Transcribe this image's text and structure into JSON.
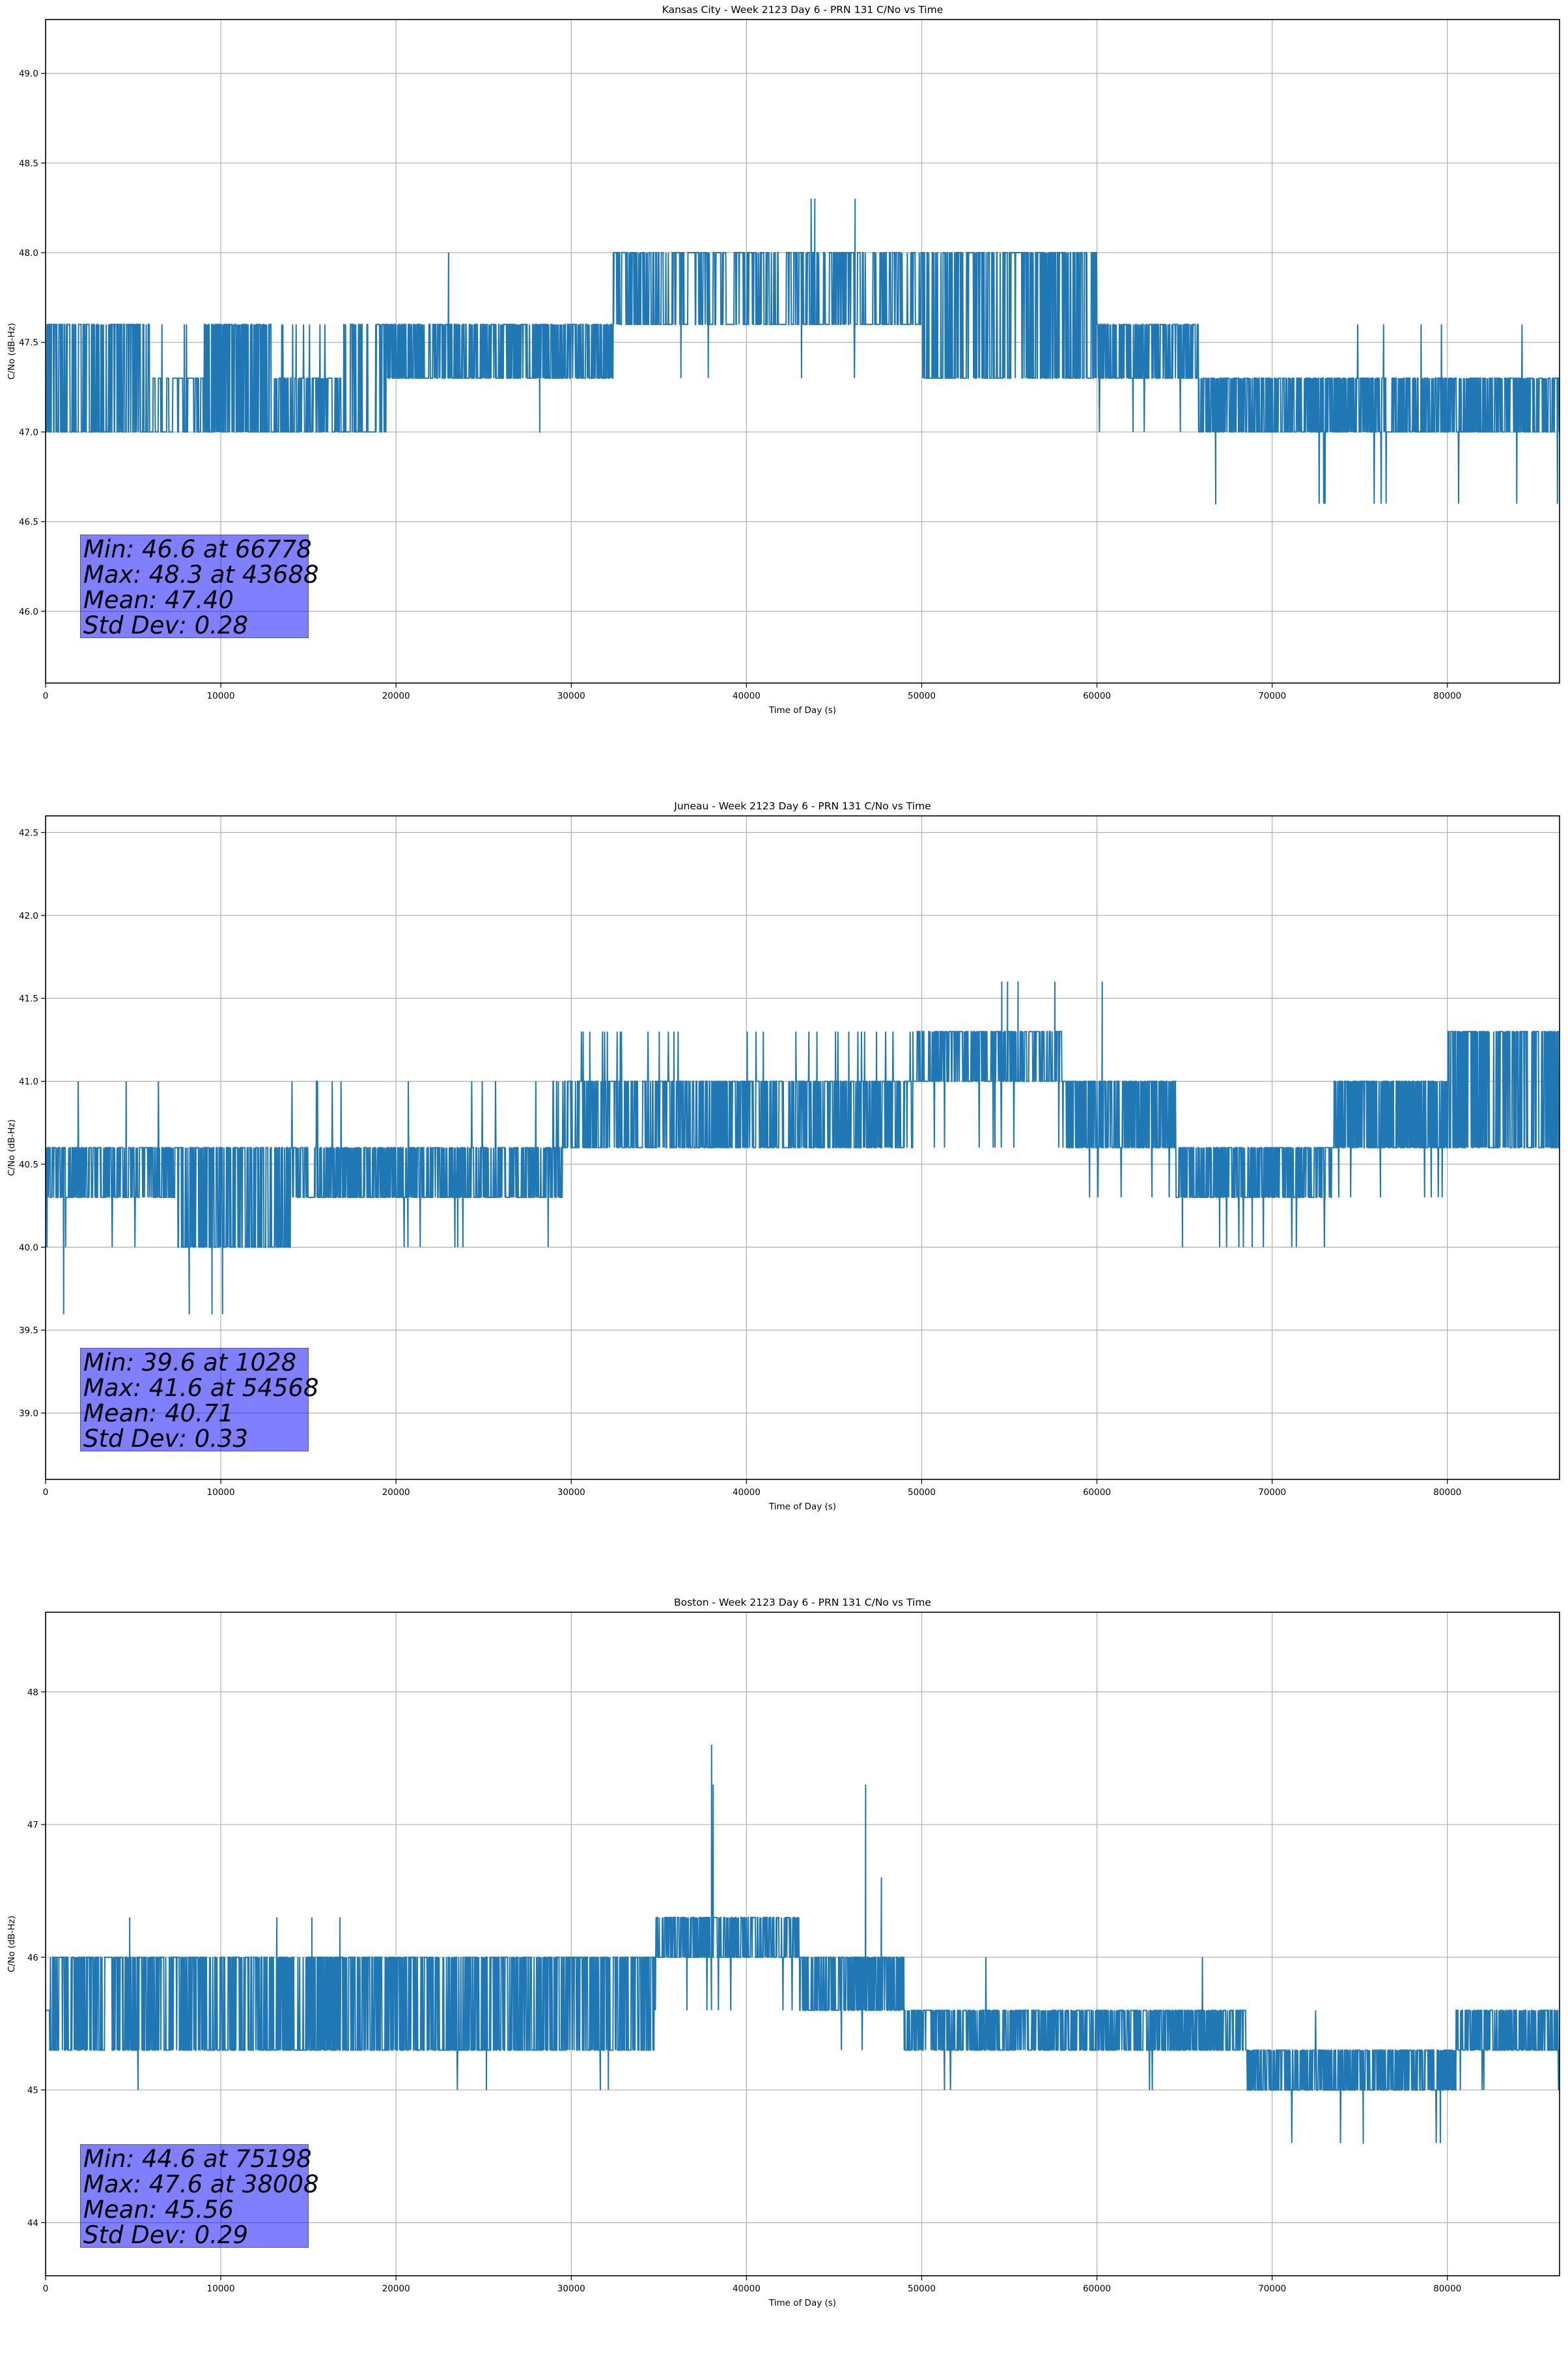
{
  "figure": {
    "colors": {
      "line": "#1f77b4",
      "grid": "#b0b0b0",
      "stats_box": "#0000ff"
    }
  },
  "chart_data": [
    {
      "type": "line",
      "title": "Kansas City - Week 2123 Day 6 - PRN 131 C/No vs Time",
      "xlabel": "Time of Day (s)",
      "ylabel": "C/No (dB-Hz)",
      "xlim": [
        0,
        86400
      ],
      "ylim": [
        45.6,
        49.3
      ],
      "xticks": [
        0,
        10000,
        20000,
        30000,
        40000,
        50000,
        60000,
        70000,
        80000
      ],
      "xtick_labels": [
        "0",
        "10000",
        "20000",
        "30000",
        "40000",
        "50000",
        "60000",
        "70000",
        "80000"
      ],
      "yticks": [
        46.0,
        46.5,
        47.0,
        47.5,
        48.0,
        48.5,
        49.0
      ],
      "ytick_labels": [
        "46.0",
        "46.5",
        "47.0",
        "47.5",
        "48.0",
        "48.5",
        "49.0"
      ],
      "grid": true,
      "series": [
        {
          "name": "PRN 131 C/No",
          "quantized_levels": [
            46.6,
            47.0,
            47.3,
            47.6,
            48.0,
            48.3
          ],
          "segments": [
            {
              "t": [
                0,
                6000
              ],
              "lo": 47.0,
              "hi": 47.6,
              "main": 47.3,
              "switch": 0.35
            },
            {
              "t": [
                6000,
                9000
              ],
              "lo": 47.0,
              "hi": 47.3,
              "main": 47.3,
              "switch": 0.1,
              "excursion": 47.6,
              "exc_rate": 0.01
            },
            {
              "t": [
                9000,
                13000
              ],
              "lo": 47.0,
              "hi": 47.6,
              "main": 47.3,
              "switch": 0.45
            },
            {
              "t": [
                13000,
                17000
              ],
              "lo": 47.0,
              "hi": 47.3,
              "main": 47.0,
              "switch": 0.35,
              "excursion": 47.6,
              "exc_rate": 0.03
            },
            {
              "t": [
                17000,
                19500
              ],
              "lo": 47.0,
              "hi": 47.6,
              "main": 47.3,
              "switch": 0.3
            },
            {
              "t": [
                19500,
                32400
              ],
              "lo": 47.3,
              "hi": 47.6,
              "main": 47.6,
              "switch": 0.45,
              "excursion": 47.0,
              "exc_rate": 0.002
            },
            {
              "t": [
                32400,
                36000
              ],
              "lo": 47.6,
              "hi": 48.0,
              "main": 48.0,
              "switch": 0.3
            },
            {
              "t": [
                36000,
                50000
              ],
              "lo": 47.6,
              "hi": 48.0,
              "main": 48.0,
              "switch": 0.25,
              "excursion": 47.3,
              "exc_rate": 0.005
            },
            {
              "t": [
                50000,
                56000
              ],
              "lo": 47.3,
              "hi": 48.0,
              "main": 47.6,
              "switch": 0.3
            },
            {
              "t": [
                56000,
                60000
              ],
              "lo": 47.3,
              "hi": 48.0,
              "main": 47.6,
              "switch": 0.4
            },
            {
              "t": [
                60000,
                65800
              ],
              "lo": 47.3,
              "hi": 47.6,
              "main": 47.6,
              "switch": 0.4,
              "excursion": 47.0,
              "exc_rate": 0.01
            },
            {
              "t": [
                65800,
                86400
              ],
              "lo": 47.0,
              "hi": 47.3,
              "main": 47.3,
              "switch": 0.45,
              "excursion": 46.6,
              "exc_rate": 0.01,
              "up_excursion": 47.6,
              "up_rate": 0.004
            }
          ],
          "spikes": [
            {
              "t": 23000,
              "v": 48.0
            },
            {
              "t": 28200,
              "v": 47.0
            },
            {
              "t": 43688,
              "v": 48.3
            },
            {
              "t": 43900,
              "v": 48.3
            },
            {
              "t": 46200,
              "v": 48.3
            },
            {
              "t": 66778,
              "v": 46.6
            }
          ]
        }
      ],
      "stats": {
        "min_label": "Min: 46.6 at 66778",
        "max_label": "Max: 48.3 at 43688",
        "mean_label": "Mean: 47.40",
        "std_label": "Std Dev: 0.28",
        "min": 46.6,
        "min_t": 66778,
        "max": 48.3,
        "max_t": 43688,
        "mean": 47.4,
        "std": 0.28
      }
    },
    {
      "type": "line",
      "title": "Juneau - Week 2123 Day 6 - PRN 131 C/No vs Time",
      "xlabel": "Time of Day (s)",
      "ylabel": "C/No (dB-Hz)",
      "xlim": [
        0,
        86400
      ],
      "ylim": [
        38.6,
        42.6
      ],
      "xticks": [
        0,
        10000,
        20000,
        30000,
        40000,
        50000,
        60000,
        70000,
        80000
      ],
      "xtick_labels": [
        "0",
        "10000",
        "20000",
        "30000",
        "40000",
        "50000",
        "60000",
        "70000",
        "80000"
      ],
      "yticks": [
        39.0,
        39.5,
        40.0,
        40.5,
        41.0,
        41.5,
        42.0,
        42.5
      ],
      "ytick_labels": [
        "39.0",
        "39.5",
        "40.0",
        "40.5",
        "41.0",
        "41.5",
        "42.0",
        "42.5"
      ],
      "grid": true,
      "series": [
        {
          "name": "PRN 131 C/No",
          "quantized_levels": [
            39.6,
            40.0,
            40.3,
            40.6,
            41.0,
            41.3,
            41.6
          ],
          "segments": [
            {
              "t": [
                0,
                7500
              ],
              "lo": 40.3,
              "hi": 40.6,
              "main": 40.6,
              "switch": 0.45,
              "excursion": 40.0,
              "exc_rate": 0.02,
              "up_excursion": 41.0,
              "up_rate": 0.01
            },
            {
              "t": [
                7500,
                14000
              ],
              "lo": 40.0,
              "hi": 40.6,
              "main": 40.3,
              "switch": 0.4,
              "excursion": 39.6,
              "exc_rate": 0.004
            },
            {
              "t": [
                14000,
                29500
              ],
              "lo": 40.3,
              "hi": 40.6,
              "main": 40.6,
              "switch": 0.45,
              "excursion": 40.0,
              "exc_rate": 0.01,
              "up_excursion": 41.0,
              "up_rate": 0.02
            },
            {
              "t": [
                29500,
                36500
              ],
              "lo": 40.6,
              "hi": 41.0,
              "main": 41.0,
              "switch": 0.35,
              "up_excursion": 41.3,
              "up_rate": 0.04
            },
            {
              "t": [
                36500,
                49500
              ],
              "lo": 40.6,
              "hi": 41.0,
              "main": 40.6,
              "switch": 0.4,
              "up_excursion": 41.3,
              "up_rate": 0.02,
              "excursion": 40.3,
              "exc_rate": 0.005
            },
            {
              "t": [
                49500,
                58000
              ],
              "lo": 41.0,
              "hi": 41.3,
              "main": 41.3,
              "switch": 0.35,
              "excursion": 40.6,
              "exc_rate": 0.01
            },
            {
              "t": [
                58000,
                64500
              ],
              "lo": 40.6,
              "hi": 41.0,
              "main": 40.6,
              "switch": 0.45,
              "excursion": 40.3,
              "exc_rate": 0.01
            },
            {
              "t": [
                64500,
                73500
              ],
              "lo": 40.3,
              "hi": 40.6,
              "main": 40.6,
              "switch": 0.45,
              "excursion": 40.0,
              "exc_rate": 0.02
            },
            {
              "t": [
                73500,
                80000
              ],
              "lo": 40.6,
              "hi": 41.0,
              "main": 40.6,
              "switch": 0.45,
              "excursion": 40.3,
              "exc_rate": 0.015
            },
            {
              "t": [
                80000,
                86400
              ],
              "lo": 40.6,
              "hi": 41.3,
              "main": 41.0,
              "switch": 0.45
            }
          ],
          "spikes": [
            {
              "t": 1028,
              "v": 39.6
            },
            {
              "t": 8200,
              "v": 39.6
            },
            {
              "t": 9500,
              "v": 39.6
            },
            {
              "t": 10100,
              "v": 39.6
            },
            {
              "t": 54568,
              "v": 41.6
            },
            {
              "t": 54900,
              "v": 41.6
            },
            {
              "t": 55500,
              "v": 41.6
            },
            {
              "t": 57600,
              "v": 41.6
            },
            {
              "t": 60300,
              "v": 41.6
            }
          ]
        }
      ],
      "stats": {
        "min_label": "Min: 39.6 at 1028",
        "max_label": "Max: 41.6 at 54568",
        "mean_label": "Mean: 40.71",
        "std_label": "Std Dev: 0.33",
        "min": 39.6,
        "min_t": 1028,
        "max": 41.6,
        "max_t": 54568,
        "mean": 40.71,
        "std": 0.33
      }
    },
    {
      "type": "line",
      "title": "Boston - Week 2123 Day 6 - PRN 131 C/No vs Time",
      "xlabel": "Time of Day (s)",
      "ylabel": "C/No (dB-Hz)",
      "xlim": [
        0,
        86400
      ],
      "ylim": [
        43.6,
        48.6
      ],
      "xticks": [
        0,
        10000,
        20000,
        30000,
        40000,
        50000,
        60000,
        70000,
        80000
      ],
      "xtick_labels": [
        "0",
        "10000",
        "20000",
        "30000",
        "40000",
        "50000",
        "60000",
        "70000",
        "80000"
      ],
      "yticks": [
        44,
        45,
        46,
        47,
        48
      ],
      "ytick_labels": [
        "44",
        "45",
        "46",
        "47",
        "48"
      ],
      "grid": true,
      "series": [
        {
          "name": "PRN 131 C/No",
          "quantized_levels": [
            44.6,
            45.0,
            45.3,
            45.6,
            46.0,
            46.3,
            46.6,
            47.3,
            47.6
          ],
          "segments": [
            {
              "t": [
                0,
                12500
              ],
              "lo": 45.3,
              "hi": 46.0,
              "main": 45.6,
              "switch": 0.4,
              "excursion": 45.0,
              "exc_rate": 0.002
            },
            {
              "t": [
                12500,
                20000
              ],
              "lo": 45.3,
              "hi": 46.0,
              "main": 45.6,
              "switch": 0.45
            },
            {
              "t": [
                20000,
                34800
              ],
              "lo": 45.3,
              "hi": 46.0,
              "main": 45.6,
              "switch": 0.4,
              "excursion": 45.0,
              "exc_rate": 0.003
            },
            {
              "t": [
                34800,
                43000
              ],
              "lo": 46.0,
              "hi": 46.3,
              "main": 46.0,
              "switch": 0.4,
              "excursion": 45.6,
              "exc_rate": 0.02
            },
            {
              "t": [
                43000,
                49000
              ],
              "lo": 45.6,
              "hi": 46.0,
              "main": 45.6,
              "switch": 0.45,
              "excursion": 45.3,
              "exc_rate": 0.004
            },
            {
              "t": [
                49000,
                68500
              ],
              "lo": 45.3,
              "hi": 45.6,
              "main": 45.6,
              "switch": 0.45,
              "excursion": 45.0,
              "exc_rate": 0.005,
              "up_excursion": 46.0,
              "up_rate": 0.004
            },
            {
              "t": [
                68500,
                80500
              ],
              "lo": 45.0,
              "hi": 45.3,
              "main": 45.3,
              "switch": 0.45,
              "excursion": 44.6,
              "exc_rate": 0.006,
              "up_excursion": 45.6,
              "up_rate": 0.005
            },
            {
              "t": [
                80500,
                86400
              ],
              "lo": 45.3,
              "hi": 45.6,
              "main": 45.6,
              "switch": 0.45,
              "excursion": 45.0,
              "exc_rate": 0.004
            }
          ],
          "spikes": [
            {
              "t": 4800,
              "v": 46.3
            },
            {
              "t": 13200,
              "v": 46.3
            },
            {
              "t": 15200,
              "v": 46.3
            },
            {
              "t": 16800,
              "v": 46.3
            },
            {
              "t": 38008,
              "v": 47.6
            },
            {
              "t": 38100,
              "v": 47.3
            },
            {
              "t": 46800,
              "v": 47.3
            },
            {
              "t": 47700,
              "v": 46.6
            },
            {
              "t": 75198,
              "v": 44.6
            }
          ]
        }
      ],
      "stats": {
        "min_label": "Min: 44.6 at 75198",
        "max_label": "Max: 47.6 at 38008",
        "mean_label": "Mean: 45.56",
        "std_label": "Std Dev: 0.29",
        "min": 44.6,
        "min_t": 75198,
        "max": 47.6,
        "max_t": 38008,
        "mean": 45.56,
        "std": 0.29
      }
    }
  ]
}
